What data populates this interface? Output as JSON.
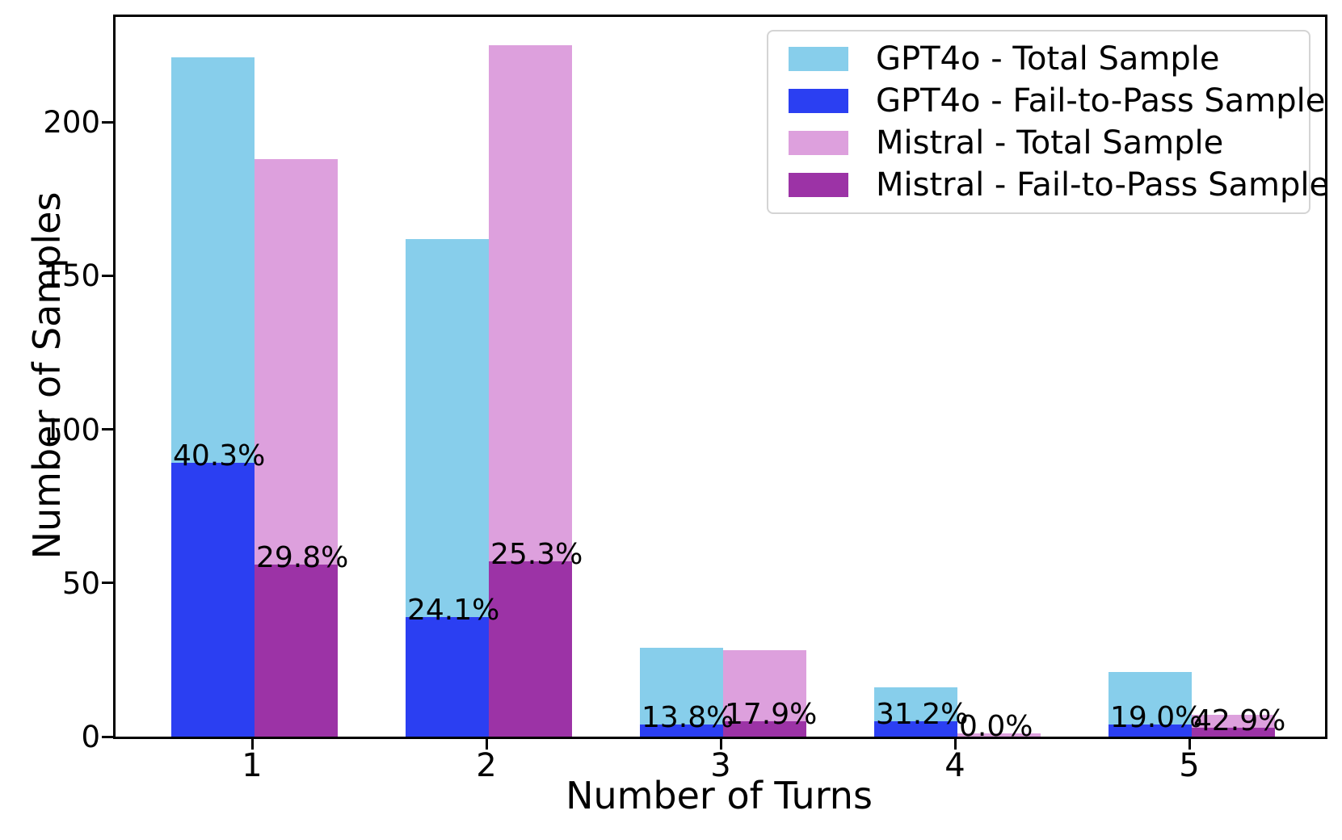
{
  "chart_data": {
    "type": "bar",
    "title": "",
    "xlabel": "Number of Turns",
    "ylabel": "Number of Samples",
    "categories": [
      "1",
      "2",
      "3",
      "4",
      "5"
    ],
    "y_ticks": [
      0,
      50,
      100,
      150,
      200
    ],
    "ylim": [
      0,
      235
    ],
    "grid": false,
    "legend_position": "upper right",
    "series": [
      {
        "name": "GPT4o - Total Sample",
        "color": "#87CEEB",
        "values": [
          221,
          162,
          29,
          16,
          21
        ]
      },
      {
        "name": "GPT4o - Fail-to-Pass Sample",
        "color": "#2B3FF2",
        "values": [
          89,
          39,
          4,
          5,
          4
        ]
      },
      {
        "name": "Mistral - Total Sample",
        "color": "#DDA0DD",
        "values": [
          188,
          225,
          28,
          1,
          7
        ]
      },
      {
        "name": "Mistral - Fail-to-Pass Sample",
        "color": "#9C33A6",
        "values": [
          56,
          57,
          5,
          0,
          3
        ]
      }
    ],
    "annotations": {
      "gpt4o_fail_pct": [
        "40.3%",
        "24.1%",
        "13.8%",
        "31.2%",
        "19.0%"
      ],
      "mistral_fail_pct": [
        "29.8%",
        "25.3%",
        "17.9%",
        "0.0%",
        "42.9%"
      ]
    }
  }
}
